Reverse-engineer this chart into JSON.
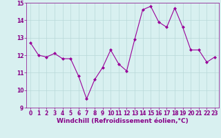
{
  "x": [
    0,
    1,
    2,
    3,
    4,
    5,
    6,
    7,
    8,
    9,
    10,
    11,
    12,
    13,
    14,
    15,
    16,
    17,
    18,
    19,
    20,
    21,
    22,
    23
  ],
  "y": [
    12.7,
    12.0,
    11.9,
    12.1,
    11.8,
    11.8,
    10.8,
    9.5,
    10.6,
    11.3,
    12.3,
    11.5,
    11.1,
    12.9,
    14.6,
    14.8,
    13.9,
    13.6,
    14.7,
    13.6,
    12.3,
    12.3,
    11.6,
    11.9
  ],
  "line_color": "#990099",
  "marker": "D",
  "marker_size": 2.0,
  "bg_color": "#d8f0f0",
  "grid_color": "#b8d8d8",
  "xlabel": "Windchill (Refroidissement éolien,°C)",
  "xlim": [
    -0.5,
    23.5
  ],
  "ylim": [
    9,
    15
  ],
  "yticks": [
    9,
    10,
    11,
    12,
    13,
    14,
    15
  ],
  "xticks": [
    0,
    1,
    2,
    3,
    4,
    5,
    6,
    7,
    8,
    9,
    10,
    11,
    12,
    13,
    14,
    15,
    16,
    17,
    18,
    19,
    20,
    21,
    22,
    23
  ],
  "tick_labelsize": 5.5,
  "xlabel_fontsize": 6.5,
  "line_width": 0.8,
  "text_color": "#880088",
  "spine_color": "#880088"
}
